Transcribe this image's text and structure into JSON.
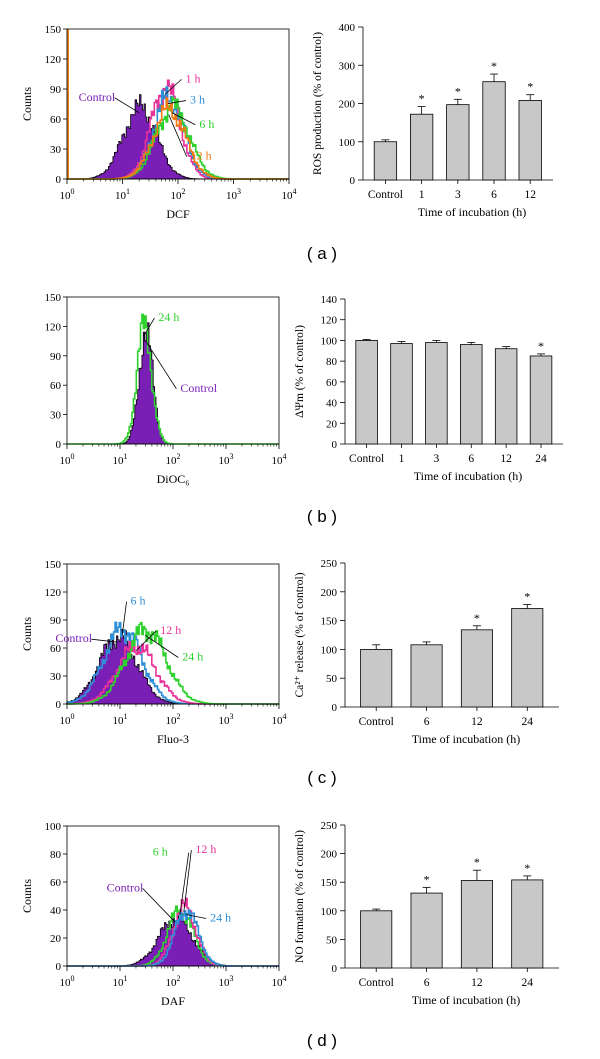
{
  "chart_data": [
    {
      "panel": "a",
      "type": "histogram",
      "xlabel": "DCF",
      "ylabel": "Counts",
      "xscale": "log",
      "xlim": [
        1,
        10000
      ],
      "ylim": [
        0,
        150
      ],
      "xticks": [
        1,
        10,
        100,
        1000,
        10000
      ],
      "yticks": [
        0,
        30,
        60,
        90,
        120,
        150
      ],
      "series": [
        {
          "name": "Control",
          "label": "Control",
          "color": "#7a1fb5",
          "filled": true,
          "peak_x": 20,
          "peak_y": 72,
          "width": 0.3,
          "edge_color": "#000000"
        },
        {
          "name": "1 h",
          "label": "1 h",
          "color": "#e8339a",
          "filled": false,
          "peak_x": 58,
          "peak_y": 92,
          "width": 0.26
        },
        {
          "name": "3 h",
          "label": "3 h",
          "color": "#2f8fd6",
          "filled": false,
          "peak_x": 66,
          "peak_y": 82,
          "width": 0.27
        },
        {
          "name": "6 h",
          "label": "6 h",
          "color": "#2fd12f",
          "filled": false,
          "peak_x": 78,
          "peak_y": 72,
          "width": 0.3
        },
        {
          "name": "12 h",
          "label": "12 h",
          "color": "#f07c12",
          "filled": false,
          "peak_x": 68,
          "peak_y": 70,
          "width": 0.29
        }
      ],
      "panel_label": "( a )"
    },
    {
      "panel": "a",
      "type": "bar",
      "xlabel": "Time of incubation (h)",
      "ylabel": "ROS production (% of control)",
      "categories": [
        "Control",
        "1",
        "3",
        "6",
        "12"
      ],
      "values": [
        100,
        172,
        197,
        257,
        208
      ],
      "errors": [
        5,
        20,
        14,
        20,
        15
      ],
      "significance": [
        "",
        "*",
        "*",
        "*",
        "*"
      ],
      "ylim": [
        0,
        400
      ],
      "yticks": [
        0,
        100,
        200,
        300,
        400
      ]
    },
    {
      "panel": "b",
      "type": "histogram",
      "xlabel": "DiOC₆",
      "ylabel": "",
      "xscale": "log",
      "xlim": [
        1,
        10000
      ],
      "ylim": [
        0,
        150
      ],
      "xticks": [
        1,
        10,
        100,
        1000,
        10000
      ],
      "yticks": [
        0,
        30,
        60,
        90,
        120,
        150
      ],
      "series": [
        {
          "name": "Control",
          "label": "Control",
          "color": "#7a1fb5",
          "filled": true,
          "peak_x": 30,
          "peak_y": 115,
          "width": 0.13,
          "edge_color": "#000000"
        },
        {
          "name": "24 h",
          "label": "24 h",
          "color": "#2fd12f",
          "filled": false,
          "peak_x": 28,
          "peak_y": 120,
          "width": 0.14
        }
      ],
      "panel_label": "( b )"
    },
    {
      "panel": "b",
      "type": "bar",
      "xlabel": "Time of incubation (h)",
      "ylabel": "ΔΨm (% of control)",
      "categories": [
        "Control",
        "1",
        "3",
        "6",
        "12",
        "24"
      ],
      "values": [
        100,
        97,
        98,
        96,
        92,
        85
      ],
      "errors": [
        1,
        2,
        2,
        2,
        2,
        2
      ],
      "significance": [
        "",
        "",
        "",
        "",
        "",
        "*"
      ],
      "ylim": [
        0,
        140
      ],
      "yticks": [
        0,
        20,
        40,
        60,
        80,
        100,
        120,
        140
      ]
    },
    {
      "panel": "c",
      "type": "histogram",
      "xlabel": "Fluo-3",
      "ylabel": "Counts",
      "xscale": "log",
      "xlim": [
        1,
        10000
      ],
      "ylim": [
        0,
        150
      ],
      "xticks": [
        1,
        10,
        100,
        1000,
        10000
      ],
      "yticks": [
        0,
        30,
        60,
        90,
        120,
        150
      ],
      "series": [
        {
          "name": "Control",
          "label": "Control",
          "color": "#7a1fb5",
          "filled": true,
          "peak_x": 9,
          "peak_y": 72,
          "width": 0.36,
          "edge_color": "#000000"
        },
        {
          "name": "6 h",
          "label": "6 h",
          "color": "#2f8fd6",
          "filled": false,
          "peak_x": 11,
          "peak_y": 80,
          "width": 0.36
        },
        {
          "name": "12 h",
          "label": "12 h",
          "color": "#e8339a",
          "filled": false,
          "peak_x": 20,
          "peak_y": 62,
          "width": 0.36
        },
        {
          "name": "24 h",
          "label": "24 h",
          "color": "#2fd12f",
          "filled": false,
          "peak_x": 30,
          "peak_y": 80,
          "width": 0.38
        }
      ],
      "panel_label": "( c )"
    },
    {
      "panel": "c",
      "type": "bar",
      "xlabel": "Time of incubation (h)",
      "ylabel": "Ca²⁺ release (% of control)",
      "categories": [
        "Control",
        "6",
        "12",
        "24"
      ],
      "values": [
        100,
        108,
        134,
        171
      ],
      "errors": [
        8,
        5,
        7,
        7
      ],
      "significance": [
        "",
        "",
        "*",
        "*"
      ],
      "ylim": [
        0,
        250
      ],
      "yticks": [
        0,
        50,
        100,
        150,
        200,
        250
      ]
    },
    {
      "panel": "d",
      "type": "histogram",
      "xlabel": "DAF",
      "ylabel": "Counts",
      "xscale": "log",
      "xlim": [
        1,
        10000
      ],
      "ylim": [
        0,
        100
      ],
      "xticks": [
        1,
        10,
        100,
        1000,
        10000
      ],
      "yticks": [
        0,
        20,
        40,
        60,
        80,
        100
      ],
      "series": [
        {
          "name": "Control",
          "label": "Control",
          "color": "#7a1fb5",
          "filled": true,
          "peak_x": 110,
          "peak_y": 34,
          "width": 0.32,
          "edge_color": "#000000"
        },
        {
          "name": "6 h",
          "label": "6 h",
          "color": "#2fd12f",
          "filled": false,
          "peak_x": 135,
          "peak_y": 40,
          "width": 0.24
        },
        {
          "name": "12 h",
          "label": "12 h",
          "color": "#e8339a",
          "filled": false,
          "peak_x": 160,
          "peak_y": 42,
          "width": 0.22
        },
        {
          "name": "24 h",
          "label": "24 h",
          "color": "#2f8fd6",
          "filled": false,
          "peak_x": 175,
          "peak_y": 40,
          "width": 0.22
        }
      ],
      "panel_label": "( d )"
    },
    {
      "panel": "d",
      "type": "bar",
      "xlabel": "Time of incubation (h)",
      "ylabel": "NO formation (% of control)",
      "categories": [
        "Control",
        "6",
        "12",
        "24"
      ],
      "values": [
        100,
        131,
        153,
        154
      ],
      "errors": [
        3,
        10,
        18,
        7
      ],
      "significance": [
        "",
        "*",
        "*",
        "*"
      ],
      "ylim": [
        0,
        250
      ],
      "yticks": [
        0,
        50,
        100,
        150,
        200,
        250
      ]
    }
  ],
  "styles": {
    "bar_fill": "#c8c8c8",
    "axis_color": "#000000",
    "grid": false
  }
}
